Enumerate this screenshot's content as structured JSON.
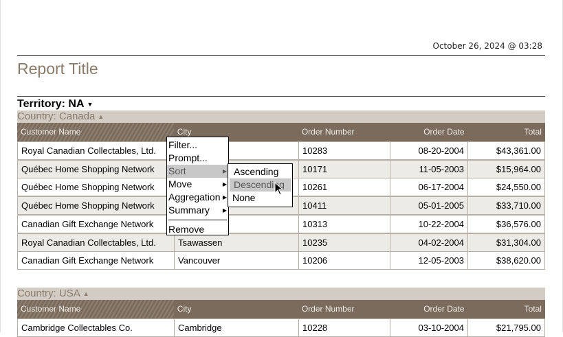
{
  "header": {
    "date": "October 26, 2024 @ 03:28",
    "title": "Report Title"
  },
  "territory": "Territory: NA",
  "columns": [
    "Customer Name",
    "City",
    "Order Number",
    "Order Date",
    "Total"
  ],
  "groups": [
    {
      "label": "Country: Canada",
      "rows": [
        [
          "Royal Canadian Collectables, Ltd.",
          "",
          "10283",
          "08-20-2004",
          "$43,361.00"
        ],
        [
          "Québec Home Shopping Network",
          "",
          "10171",
          "11-05-2003",
          "$15,964.00"
        ],
        [
          "Québec Home Shopping Network",
          "",
          "10261",
          "06-17-2004",
          "$24,550.00"
        ],
        [
          "Québec Home Shopping Network",
          "",
          "10411",
          "05-01-2005",
          "$33,710.00"
        ],
        [
          "Canadian Gift Exchange Network",
          "",
          "10313",
          "10-22-2004",
          "$36,576.00"
        ],
        [
          "Royal Canadian Collectables, Ltd.",
          "Tsawassen",
          "10235",
          "04-02-2004",
          "$31,304.00"
        ],
        [
          "Canadian Gift Exchange Network",
          "Vancouver",
          "10206",
          "12-05-2003",
          "$38,620.00"
        ]
      ]
    },
    {
      "label": "Country: USA",
      "rows": [
        [
          "Cambridge Collectables Co.",
          "Cambridge",
          "10228",
          "03-10-2004",
          "$21,795.00"
        ]
      ]
    }
  ],
  "context_menu": {
    "items": [
      "Filter...",
      "Prompt...",
      "Sort",
      "Move",
      "Aggregation",
      "Summary",
      "Remove"
    ],
    "highlighted": "Sort"
  },
  "sort_submenu": {
    "items": [
      "Ascending",
      "Descending",
      "None"
    ],
    "highlighted": "Descending"
  }
}
